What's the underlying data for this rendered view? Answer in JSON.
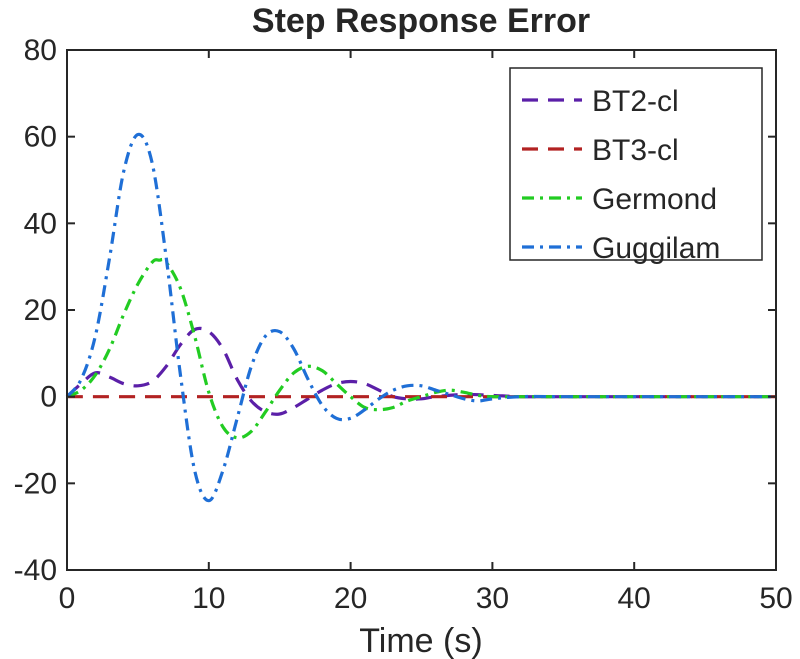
{
  "chart_data": {
    "type": "line",
    "title": "Step Response Error",
    "xlabel": "Time (s)",
    "ylabel": "",
    "xlim": [
      0,
      50
    ],
    "ylim": [
      -40,
      80
    ],
    "xticks": [
      0,
      10,
      20,
      30,
      40,
      50
    ],
    "yticks": [
      -40,
      -20,
      0,
      20,
      40,
      60,
      80
    ],
    "grid": false,
    "legend_position": "top-right",
    "series": [
      {
        "name": "BT2-cl",
        "color": "#5b1fa8",
        "dash": "dashed",
        "x": [
          0,
          1,
          2,
          3,
          4,
          5,
          6,
          7,
          8,
          9,
          10,
          11,
          12,
          13,
          14,
          15,
          16,
          17,
          18,
          19,
          20,
          21,
          22,
          23,
          24,
          25,
          26,
          28,
          30,
          32,
          35,
          40,
          45,
          50
        ],
        "y": [
          0,
          3,
          5.5,
          4.5,
          3,
          2.5,
          3.5,
          7,
          12,
          15.5,
          15,
          11,
          4,
          -1,
          -3.5,
          -4,
          -2.5,
          -0.5,
          1.5,
          3,
          3.5,
          3,
          1.5,
          0,
          -0.5,
          -0.5,
          0,
          0.5,
          0.3,
          0,
          0,
          0,
          0,
          0
        ]
      },
      {
        "name": "BT3-cl",
        "color": "#b22222",
        "dash": "dashed",
        "x": [
          0,
          5,
          10,
          15,
          20,
          25,
          30,
          35,
          40,
          45,
          50
        ],
        "y": [
          0,
          0,
          0,
          0,
          0,
          0,
          0,
          0,
          0,
          0,
          0
        ]
      },
      {
        "name": "Germond",
        "color": "#22cc22",
        "dash": "dashdot",
        "x": [
          0,
          1,
          2,
          3,
          4,
          5,
          6,
          6.5,
          7,
          8,
          9,
          10,
          11,
          12,
          13,
          14,
          15,
          16,
          17,
          18,
          19,
          20,
          21,
          22,
          23,
          24,
          25,
          26,
          27,
          28,
          29,
          30,
          32,
          35,
          40,
          45,
          50
        ],
        "y": [
          0,
          1.5,
          5,
          11,
          19,
          26,
          31,
          31.5,
          31,
          25,
          14,
          1,
          -7,
          -9.5,
          -8,
          -3.5,
          1.5,
          5.5,
          7,
          6,
          3,
          0,
          -2.5,
          -3,
          -2.5,
          -1,
          0,
          1,
          1.5,
          1,
          0.3,
          0,
          0,
          0,
          0,
          0,
          0
        ]
      },
      {
        "name": "Guggilam",
        "color": "#1f6fd6",
        "dash": "dashdot",
        "x": [
          0,
          1,
          2,
          3,
          4,
          5,
          6,
          7,
          8,
          9,
          10,
          11,
          12,
          13,
          14,
          15,
          16,
          17,
          18,
          19,
          20,
          21,
          22,
          23,
          24,
          25,
          26,
          27,
          28,
          29,
          30,
          32,
          35,
          40,
          45,
          50
        ],
        "y": [
          0,
          4,
          14,
          32,
          52,
          60.5,
          54,
          32,
          5,
          -17,
          -24,
          -17,
          -5,
          7,
          14,
          15,
          11,
          4,
          -2,
          -5,
          -5,
          -3,
          -0.5,
          1.5,
          2.5,
          2.5,
          1.5,
          0.5,
          -0.5,
          -1,
          -0.5,
          0,
          0,
          0,
          0,
          0
        ]
      }
    ]
  }
}
